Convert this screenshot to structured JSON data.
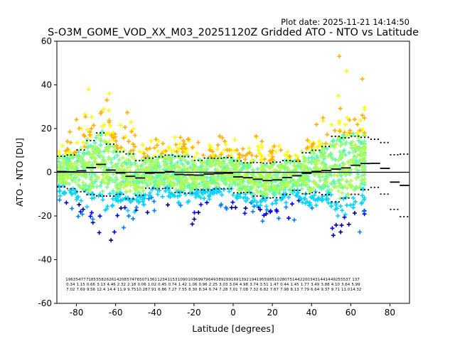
{
  "plot_date": "Plot date: 2025-11-21 14:14:50",
  "chart_data": {
    "type": "scatter",
    "title": "S-O3M_GOME_VOD_XX_M03_20251120Z Gridded ATO - NTO vs Latitude",
    "xlabel": "Latitude [degrees]",
    "ylabel": "ATO - NTO [DU]",
    "xlim": [
      -90,
      90
    ],
    "ylim": [
      -60,
      60
    ],
    "xticks": [
      -80,
      -60,
      -40,
      -20,
      0,
      20,
      40,
      60,
      80
    ],
    "yticks": [
      -60,
      -40,
      -20,
      0,
      20,
      40,
      60
    ],
    "grid": false,
    "legend": "none",
    "colors": [
      "#00008b",
      "#0000ff",
      "#0080ff",
      "#00d4ff",
      "#4dffb3",
      "#80ff80",
      "#b3ff4d",
      "#ffff00",
      "#ffb000"
    ],
    "zero_line": 0,
    "bins": {
      "lat_start": -90,
      "lat_step": 5,
      "mean": [
        0.34,
        0.21,
        0.67,
        2.12,
        3.6,
        1.0,
        -0.34,
        -1.86,
        -2.6,
        -0.4,
        -0.2,
        0.3,
        -1.0,
        -1.2,
        -1.3,
        -0.8,
        -0.6,
        -0.4,
        -2.1,
        -2.5,
        -3.2,
        -3.8,
        -3.5,
        -2.4,
        -1.6,
        -0.44,
        0.37,
        0.77,
        1.45,
        2.0,
        3.2,
        4.0,
        4.1,
        1.8,
        -4.5,
        -6.0
      ],
      "std": [
        7.02,
        7.69,
        9.56,
        12.4,
        14.4,
        11.9,
        9.75,
        10.28,
        7.91,
        6.86,
        7.27,
        7.55,
        8.3,
        8.34,
        6.74,
        7.28,
        7.01,
        7.08,
        7.32,
        6.82,
        7.67,
        7.98,
        8.13,
        7.79,
        6.64,
        9.37,
        9.71,
        11.0,
        15.0,
        13.8,
        13.3,
        12.0,
        11.0,
        11.8,
        12.5,
        14.32
      ]
    },
    "stats_rows": [
      [
        "1963",
        "5477",
        "7185",
        "5582",
        "6261",
        "4208",
        "5747",
        "6507",
        "1361",
        "1234",
        "1153",
        "1090",
        "1036",
        "9979",
        "6493",
        "8929",
        "9169",
        "1392",
        "1941",
        "9559",
        "8510",
        "2807",
        "5144",
        "2200",
        "3431",
        "4414",
        "4925",
        "5537",
        "137"
      ],
      [
        "0.34",
        "1.15",
        "0.66",
        "3.13",
        "4.46",
        "2.32",
        "2.18",
        "0.06",
        "1.02",
        "0.45",
        "0.74",
        "1.42",
        "1.06",
        "0.96",
        "2.25",
        "3.03",
        "3.04",
        "4.98",
        "3.74",
        "3.51",
        "1.47",
        "0.44",
        "1.45",
        "1.77",
        "3.49",
        "3.88",
        "4.10",
        "3.64",
        "5.99"
      ],
      [
        "7.02",
        "7.69",
        "9.56",
        "12.4",
        "14.4",
        "11.9",
        "9.75",
        "10.28",
        "7.91",
        "6.86",
        "7.27",
        "7.55",
        "8.30",
        "8.34",
        "6.74",
        "7.28",
        "7.01",
        "7.08",
        "7.32",
        "6.82",
        "7.67",
        "7.98",
        "8.13",
        "7.79",
        "6.64",
        "9.37",
        "9.71",
        "11.0",
        "14.32"
      ]
    ]
  }
}
